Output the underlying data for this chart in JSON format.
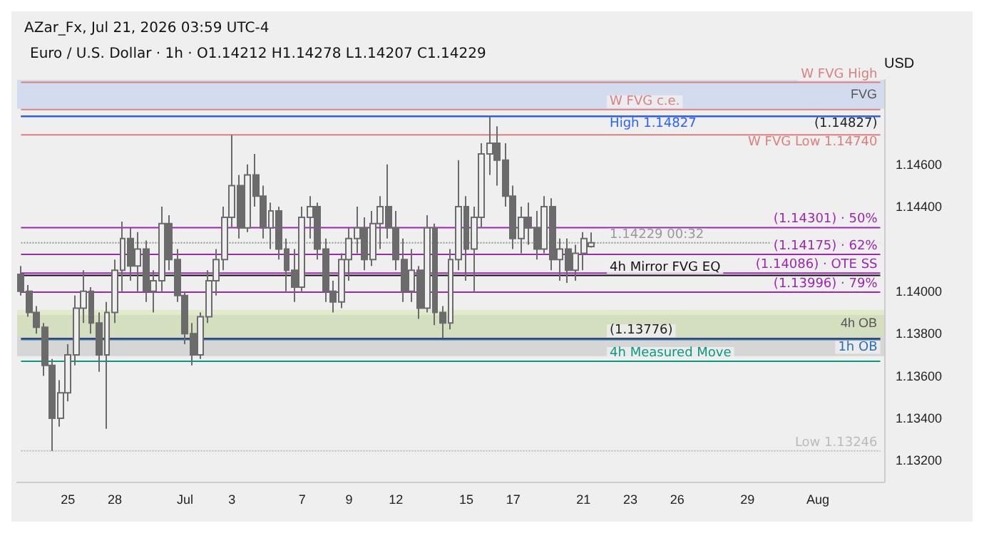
{
  "chart_data": {
    "type": "candlestick",
    "title": "AZar_Fx, Jul 21, 2026 03:59 UTC-4",
    "subtitle": "Euro / U.S. Dollar · 1h · O1.14212 H1.14278 L1.14207 C1.14229",
    "ylabel": "USD",
    "categories": [
      null,
      null,
      null,
      null,
      null,
      null,
      "25",
      null,
      null,
      null,
      null,
      null,
      "28",
      null,
      null,
      null,
      null,
      null,
      null,
      null,
      null,
      "Jul",
      null,
      null,
      null,
      null,
      null,
      "3",
      null,
      null,
      null,
      null,
      null,
      null,
      null,
      null,
      "7",
      null,
      null,
      null,
      null,
      null,
      "9",
      null,
      null,
      null,
      null,
      null,
      "12",
      null,
      null,
      null,
      null,
      null,
      null,
      null,
      null,
      "15",
      null,
      null,
      null,
      null,
      null,
      "17",
      null,
      null,
      null,
      null,
      null,
      null,
      null,
      null,
      "21",
      null,
      null,
      null,
      null,
      null,
      "23",
      null,
      null,
      null,
      null,
      null,
      "26",
      null,
      null,
      null,
      null,
      null,
      null,
      null,
      null,
      "29",
      null,
      null,
      null,
      null,
      null,
      null,
      null,
      null,
      "Aug",
      null,
      null,
      null,
      null,
      null,
      null,
      null,
      null
    ],
    "ohlc": [
      [
        1.1408,
        1.1412,
        1.1398,
        1.14
      ],
      [
        1.14,
        1.1403,
        1.1388,
        1.139
      ],
      [
        1.139,
        1.1393,
        1.138,
        1.1383
      ],
      [
        1.1383,
        1.1385,
        1.136,
        1.1365
      ],
      [
        1.1365,
        1.1368,
        1.13246,
        1.134
      ],
      [
        1.134,
        1.1358,
        1.1336,
        1.1352
      ],
      [
        1.1352,
        1.1375,
        1.1348,
        1.137
      ],
      [
        1.137,
        1.1398,
        1.1365,
        1.1392
      ],
      [
        1.1392,
        1.141,
        1.1385,
        1.14
      ],
      [
        1.14,
        1.1402,
        1.138,
        1.1385
      ],
      [
        1.1385,
        1.139,
        1.1362,
        1.137
      ],
      [
        1.137,
        1.1395,
        1.1335,
        1.139
      ],
      [
        1.139,
        1.1415,
        1.1385,
        1.141
      ],
      [
        1.141,
        1.1433,
        1.14,
        1.1425
      ],
      [
        1.1425,
        1.143,
        1.1405,
        1.1412
      ],
      [
        1.1412,
        1.1428,
        1.14,
        1.142
      ],
      [
        1.142,
        1.1424,
        1.1395,
        1.14
      ],
      [
        1.14,
        1.141,
        1.139,
        1.1405
      ],
      [
        1.1405,
        1.144,
        1.14,
        1.1432
      ],
      [
        1.1432,
        1.1436,
        1.141,
        1.1415
      ],
      [
        1.1415,
        1.142,
        1.1395,
        1.1398
      ],
      [
        1.1398,
        1.14,
        1.1375,
        1.138
      ],
      [
        1.138,
        1.1385,
        1.1365,
        1.137
      ],
      [
        1.137,
        1.139,
        1.1368,
        1.1388
      ],
      [
        1.1388,
        1.141,
        1.1385,
        1.1405
      ],
      [
        1.1405,
        1.142,
        1.1398,
        1.1415
      ],
      [
        1.1415,
        1.144,
        1.141,
        1.1435
      ],
      [
        1.1435,
        1.1474,
        1.143,
        1.145
      ],
      [
        1.145,
        1.1455,
        1.1425,
        1.143
      ],
      [
        1.143,
        1.146,
        1.1428,
        1.1455
      ],
      [
        1.1455,
        1.1465,
        1.144,
        1.1445
      ],
      [
        1.1445,
        1.145,
        1.1425,
        1.143
      ],
      [
        1.143,
        1.1442,
        1.142,
        1.1438
      ],
      [
        1.1438,
        1.144,
        1.1415,
        1.142
      ],
      [
        1.142,
        1.1425,
        1.14,
        1.141
      ],
      [
        1.141,
        1.142,
        1.1395,
        1.1402
      ],
      [
        1.1402,
        1.144,
        1.14,
        1.1435
      ],
      [
        1.1435,
        1.1445,
        1.1425,
        1.144
      ],
      [
        1.144,
        1.1442,
        1.1415,
        1.142
      ],
      [
        1.142,
        1.1425,
        1.1395,
        1.14
      ],
      [
        1.14,
        1.1405,
        1.139,
        1.1395
      ],
      [
        1.1395,
        1.1418,
        1.1392,
        1.1415
      ],
      [
        1.1415,
        1.143,
        1.1405,
        1.1425
      ],
      [
        1.1425,
        1.144,
        1.1418,
        1.143
      ],
      [
        1.143,
        1.1435,
        1.141,
        1.1415
      ],
      [
        1.1415,
        1.1438,
        1.1412,
        1.1432
      ],
      [
        1.1432,
        1.1445,
        1.142,
        1.144
      ],
      [
        1.144,
        1.146,
        1.1425,
        1.143
      ],
      [
        1.143,
        1.1438,
        1.141,
        1.1415
      ],
      [
        1.1415,
        1.1425,
        1.1395,
        1.14
      ],
      [
        1.14,
        1.142,
        1.1395,
        1.141
      ],
      [
        1.141,
        1.1412,
        1.1387,
        1.1392
      ],
      [
        1.1392,
        1.1436,
        1.139,
        1.143
      ],
      [
        1.143,
        1.1432,
        1.1384,
        1.139
      ],
      [
        1.139,
        1.1393,
        1.1378,
        1.1385
      ],
      [
        1.1385,
        1.142,
        1.1382,
        1.1415
      ],
      [
        1.1415,
        1.1462,
        1.141,
        1.144
      ],
      [
        1.144,
        1.1445,
        1.1405,
        1.142
      ],
      [
        1.142,
        1.144,
        1.14,
        1.1435
      ],
      [
        1.1435,
        1.147,
        1.143,
        1.1465
      ],
      [
        1.1465,
        1.14827,
        1.1455,
        1.147
      ],
      [
        1.147,
        1.1478,
        1.145,
        1.1462
      ],
      [
        1.1462,
        1.147,
        1.144,
        1.1445
      ],
      [
        1.1445,
        1.145,
        1.142,
        1.1425
      ],
      [
        1.1425,
        1.144,
        1.1418,
        1.1435
      ],
      [
        1.1435,
        1.1442,
        1.1422,
        1.143
      ],
      [
        1.143,
        1.1438,
        1.1415,
        1.142
      ],
      [
        1.142,
        1.1445,
        1.1418,
        1.144
      ],
      [
        1.144,
        1.1444,
        1.141,
        1.1415
      ],
      [
        1.1415,
        1.1425,
        1.1405,
        1.142
      ],
      [
        1.142,
        1.1425,
        1.1404,
        1.141
      ],
      [
        1.141,
        1.1422,
        1.1405,
        1.1418
      ],
      [
        1.1418,
        1.1428,
        1.141,
        1.1425
      ],
      [
        1.14212,
        1.14278,
        1.14207,
        1.14229
      ],
      null,
      null,
      null,
      null,
      null,
      null,
      null,
      null,
      null,
      null,
      null,
      null,
      null,
      null,
      null,
      null,
      null,
      null,
      null,
      null,
      null,
      null,
      null,
      null,
      null,
      null,
      null,
      null,
      null,
      null,
      null,
      null,
      null,
      null,
      null,
      null,
      null
    ],
    "color": "#6b6b6b",
    "ylim": [
      1.131,
      1.15
    ],
    "yticks": [
      {
        "value": 1.132,
        "label": "1.13200"
      },
      {
        "value": 1.134,
        "label": "1.13400"
      },
      {
        "value": 1.136,
        "label": "1.13600"
      },
      {
        "value": 1.138,
        "label": "1.13800"
      },
      {
        "value": 1.14,
        "label": "1.14000"
      },
      {
        "value": 1.144,
        "label": "1.14400"
      },
      {
        "value": 1.146,
        "label": "1.14600"
      }
    ],
    "grid": false,
    "ref_lines": [
      {
        "axis": "y",
        "value": 1.14988,
        "label": "W FVG High",
        "color": "#d98080"
      },
      {
        "axis": "y",
        "value": 1.14859,
        "label": "W FVG c.e.",
        "color": "#d98080"
      },
      {
        "axis": "y",
        "value": 1.14827,
        "label": "(1.14827)",
        "color": "#222222"
      },
      {
        "axis": "y",
        "value": 1.14827,
        "label": "High 1.14827",
        "color": "#2962ff"
      },
      {
        "axis": "y",
        "value": 1.1474,
        "label": "W FVG Low 1.14740",
        "color": "#d98080"
      },
      {
        "axis": "y",
        "value": 1.14301,
        "label": "(1.14301) · 50%",
        "color": "#9c27b0"
      },
      {
        "axis": "y",
        "value": 1.14229,
        "label": "1.14229 00:32",
        "color": "#999999",
        "line_style": "dotted"
      },
      {
        "axis": "y",
        "value": 1.14175,
        "label": "(1.14175) · 62%",
        "color": "#9c27b0"
      },
      {
        "axis": "y",
        "value": 1.14086,
        "label": "(1.14086) · OTE SS",
        "color": "#9c27b0"
      },
      {
        "axis": "y",
        "value": 1.14075,
        "label": "4h Mirror FVG EQ",
        "color": "#111111"
      },
      {
        "axis": "y",
        "value": 1.13996,
        "label": "(1.13996) · 79%",
        "color": "#9c27b0"
      },
      {
        "axis": "y",
        "value": 1.13776,
        "label": "(1.13776)",
        "color": "#222222"
      },
      {
        "axis": "y",
        "value": 1.13772,
        "label": "1h OB",
        "color": "#2a6fb0"
      },
      {
        "axis": "y",
        "value": 1.13669,
        "label": "4h Measured Move",
        "color": "#089981"
      },
      {
        "axis": "y",
        "value": 1.13246,
        "label": "Low 1.13246",
        "color": "#bbbbbb",
        "line_style": "dotted"
      }
    ],
    "bands": [
      {
        "axis": "y",
        "from": 1.14863,
        "to": 1.15,
        "label": "FVG",
        "color": "#b8c8ee"
      },
      {
        "axis": "y",
        "from": 1.13694,
        "to": 1.13888,
        "color": "#bdbdbd"
      },
      {
        "axis": "y",
        "from": 1.13788,
        "to": 1.13913,
        "label": "4h OB",
        "color": "#cfe8a8"
      }
    ]
  }
}
